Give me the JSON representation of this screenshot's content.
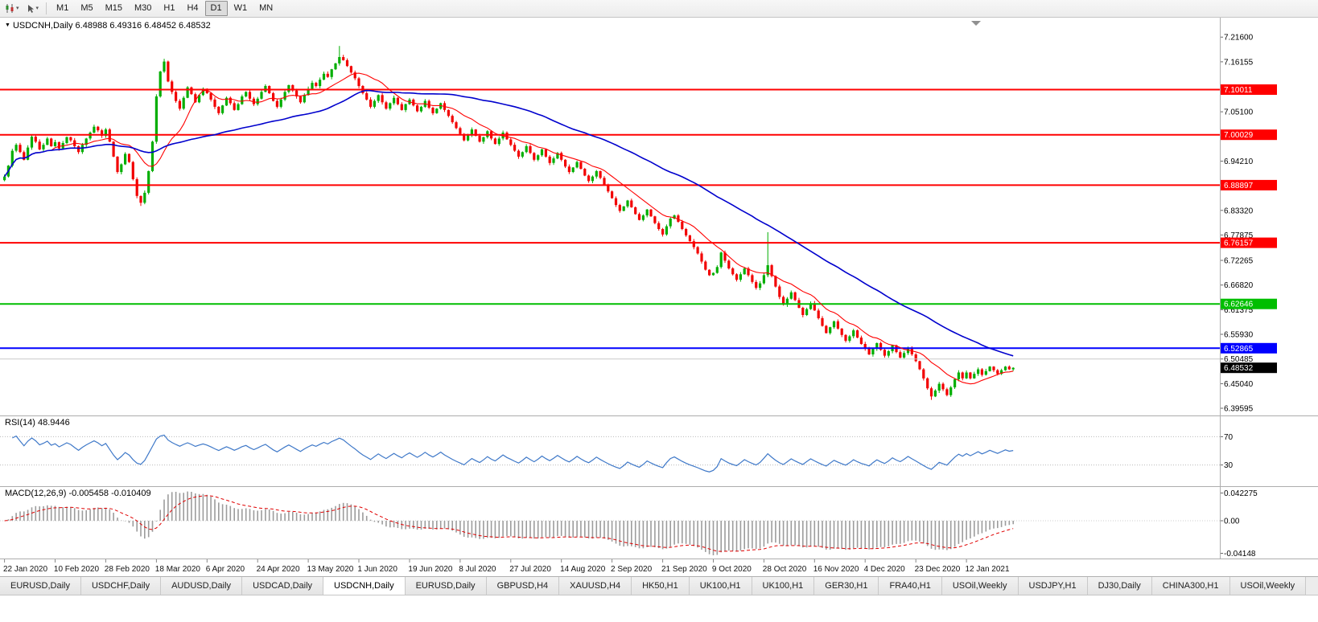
{
  "icons": {
    "title_caret": "▼",
    "small_caret": "▾"
  },
  "toolbar": {
    "timeframes": [
      "M1",
      "M5",
      "M15",
      "M30",
      "H1",
      "H4",
      "D1",
      "W1",
      "MN"
    ],
    "active_timeframe": "D1"
  },
  "tabs": {
    "items": [
      "EURUSD,Daily",
      "USDCHF,Daily",
      "AUDUSD,Daily",
      "USDCAD,Daily",
      "USDCNH,Daily",
      "EURUSD,Daily",
      "GBPUSD,H4",
      "XAUUSD,H4",
      "HK50,H1",
      "UK100,H1",
      "UK100,H1",
      "GER30,H1",
      "FRA40,H1",
      "USOil,Weekly",
      "USDJPY,H1",
      "DJ30,Daily",
      "CHINA300,H1",
      "USOil,Weekly"
    ],
    "active_index": 4
  },
  "chart_data": {
    "type": "candlestick",
    "symbol": "USDCNH",
    "timeframe": "Daily",
    "title_line": "USDCNH,Daily 6.48988 6.49316 6.48452 6.48532",
    "bull_color": "#00AE00",
    "bear_color": "#F20000",
    "price_axis": {
      "top": 7.259,
      "bottom": 6.38,
      "ticks": [
        "7.21600",
        "7.16155",
        "7.05100",
        "6.94210",
        "6.83320",
        "6.77875",
        "6.72265",
        "6.66820",
        "6.61375",
        "6.55930",
        "6.50485",
        "6.45040",
        "6.39595"
      ]
    },
    "x_labels": [
      "22 Jan 2020",
      "10 Feb 2020",
      "28 Feb 2020",
      "18 Mar 2020",
      "6 Apr 2020",
      "24 Apr 2020",
      "13 May 2020",
      "1 Jun 2020",
      "19 Jun 2020",
      "8 Jul 2020",
      "27 Jul 2020",
      "14 Aug 2020",
      "2 Sep 2020",
      "21 Sep 2020",
      "9 Oct 2020",
      "28 Oct 2020",
      "16 Nov 2020",
      "4 Dec 2020",
      "23 Dec 2020",
      "12 Jan 2021"
    ],
    "horizontal_lines": [
      {
        "price": 7.10011,
        "label": "7.10011",
        "color": "#FF0000",
        "width": 2,
        "badge": true
      },
      {
        "price": 7.00029,
        "label": "7.00029",
        "color": "#FF0000",
        "width": 2,
        "badge": true
      },
      {
        "price": 6.88897,
        "label": "6.88897",
        "color": "#FF0000",
        "width": 2,
        "badge": true
      },
      {
        "price": 6.76157,
        "label": "6.76157",
        "color": "#FF0000",
        "width": 2,
        "badge": true
      },
      {
        "price": 6.62646,
        "label": "6.62646",
        "color": "#00BE00",
        "width": 2,
        "badge": true
      },
      {
        "price": 6.52865,
        "label": "6.52865",
        "color": "#0000FF",
        "width": 2,
        "badge": true
      },
      {
        "price": 6.50485,
        "label": "",
        "color": "#C9C9C9",
        "width": 1,
        "badge": false
      }
    ],
    "current_price": {
      "value": 6.48532,
      "label": "6.48532",
      "bg": "#000000"
    },
    "moving_averages": [
      {
        "period": 13,
        "color": "#FF0000"
      },
      {
        "period": 55,
        "color": "#0000CD"
      }
    ],
    "candles": {
      "first_open": 6.9,
      "closes": [
        6.908,
        6.932,
        6.965,
        6.978,
        6.962,
        6.945,
        6.972,
        6.996,
        6.985,
        6.968,
        6.978,
        6.992,
        6.975,
        6.984,
        6.97,
        6.982,
        6.995,
        6.988,
        6.975,
        6.962,
        6.978,
        6.992,
        7.005,
        7.018,
        7.01,
        6.998,
        7.012,
        6.985,
        6.952,
        6.918,
        6.935,
        6.958,
        6.94,
        6.902,
        6.865,
        6.85,
        6.872,
        6.92,
        6.985,
        7.085,
        7.14,
        7.162,
        7.118,
        7.095,
        7.075,
        7.058,
        7.082,
        7.105,
        7.09,
        7.072,
        7.088,
        7.102,
        7.092,
        7.078,
        7.062,
        7.048,
        7.065,
        7.082,
        7.07,
        7.055,
        7.068,
        7.085,
        7.095,
        7.08,
        7.068,
        7.08,
        7.095,
        7.108,
        7.092,
        7.075,
        7.062,
        7.078,
        7.095,
        7.11,
        7.098,
        7.085,
        7.072,
        7.088,
        7.102,
        7.115,
        7.108,
        7.122,
        7.135,
        7.128,
        7.145,
        7.158,
        7.172,
        7.165,
        7.152,
        7.138,
        7.125,
        7.108,
        7.092,
        7.078,
        7.062,
        7.075,
        7.088,
        7.072,
        7.058,
        7.07,
        7.082,
        7.068,
        7.055,
        7.068,
        7.078,
        7.065,
        7.052,
        7.062,
        7.075,
        7.06,
        7.048,
        7.058,
        7.07,
        7.055,
        7.042,
        7.028,
        7.015,
        7.002,
        6.988,
        7.0,
        7.012,
        6.998,
        6.985,
        6.995,
        7.008,
        6.992,
        6.98,
        6.992,
        7.005,
        6.99,
        6.978,
        6.965,
        6.952,
        6.962,
        6.975,
        6.96,
        6.945,
        6.955,
        6.968,
        6.952,
        6.938,
        6.948,
        6.96,
        6.945,
        6.93,
        6.918,
        6.928,
        6.94,
        6.925,
        6.91,
        6.898,
        6.908,
        6.92,
        6.905,
        6.89,
        6.875,
        6.86,
        6.845,
        6.832,
        6.842,
        6.855,
        6.84,
        6.825,
        6.812,
        6.822,
        6.835,
        6.82,
        6.805,
        6.792,
        6.78,
        6.798,
        6.815,
        6.822,
        6.808,
        6.792,
        6.778,
        6.765,
        6.752,
        6.738,
        6.72,
        6.702,
        6.69,
        6.695,
        6.708,
        6.74,
        6.722,
        6.705,
        6.692,
        6.68,
        6.692,
        6.705,
        6.69,
        6.675,
        6.662,
        6.672,
        6.69,
        6.712,
        6.688,
        6.665,
        6.642,
        6.625,
        6.638,
        6.652,
        6.635,
        6.618,
        6.602,
        6.615,
        6.628,
        6.612,
        6.595,
        6.578,
        6.562,
        6.575,
        6.588,
        6.572,
        6.558,
        6.545,
        6.555,
        6.568,
        6.552,
        6.538,
        6.528,
        6.515,
        6.528,
        6.54,
        6.525,
        6.512,
        6.522,
        6.535,
        6.52,
        6.508,
        6.518,
        6.53,
        6.515,
        6.5,
        6.482,
        6.462,
        6.44,
        6.422,
        6.435,
        6.45,
        6.438,
        6.425,
        6.442,
        6.46,
        6.475,
        6.462,
        6.475,
        6.462,
        6.472,
        6.482,
        6.47,
        6.478,
        6.488,
        6.48,
        6.472,
        6.48,
        6.488,
        6.482,
        6.4853
      ],
      "wick_overrides": {
        "35": {
          "low": 6.843
        },
        "41": {
          "high": 7.168
        },
        "86": {
          "high": 7.1965
        },
        "196": {
          "high": 6.785
        },
        "238": {
          "low": 6.4145
        }
      }
    },
    "rsi": {
      "label": "RSI(14) 48.9446",
      "period": 14,
      "value": "48.9446",
      "levels": [
        70,
        30
      ],
      "color": "#3E78C8"
    },
    "macd": {
      "label": "MACD(12,26,9) -0.005458 -0.010409",
      "fast": 12,
      "slow": 26,
      "signal": 9,
      "axis_labels": [
        "0.042275",
        "0.00",
        "-0.04148"
      ],
      "histogram_color": "#9C9C9C",
      "signal_color": "#E00000"
    }
  }
}
